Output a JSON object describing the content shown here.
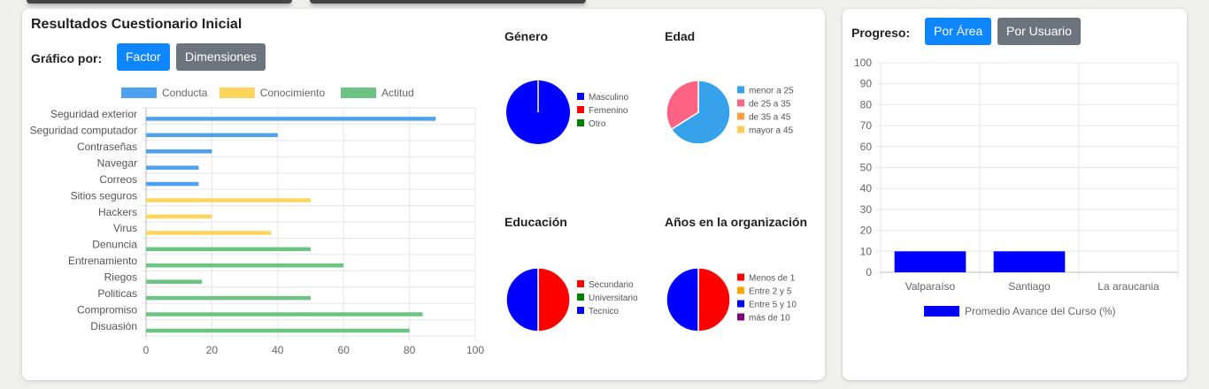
{
  "left_panel": {
    "title": "Resultados Cuestionario Inicial",
    "group_label": "Gráfico por:",
    "btn_factor": "Factor",
    "btn_dimensiones": "Dimensiones"
  },
  "right_panel": {
    "label": "Progreso:",
    "btn_area": "Por Área",
    "btn_usuario": "Por Usuario"
  },
  "colors": {
    "conducta": "#4ea1f1",
    "conocimiento": "#fcd55a",
    "actitud": "#6cc482",
    "blue": "#0000ff",
    "red": "#ff0000",
    "green": "#008000",
    "pink": "#ff6384",
    "lightblue": "#36a2eb",
    "orange": "#ff9f40",
    "yellow": "#ffcd56",
    "amber": "#ffa500",
    "purple": "#800080"
  },
  "chart_data": [
    {
      "id": "factor",
      "type": "bar",
      "orientation": "horizontal",
      "categories": [
        "Seguridad exterior",
        "Seguridad computador",
        "Contraseñas",
        "Navegar",
        "Correos",
        "Sitios seguros",
        "Hackers",
        "Virus",
        "Denuncia",
        "Entrenamiento",
        "Riegos",
        "Politicas",
        "Compromiso",
        "Disuasión"
      ],
      "series": [
        {
          "name": "Conducta",
          "values": [
            88,
            40,
            20,
            16,
            16,
            null,
            null,
            null,
            null,
            null,
            null,
            null,
            null,
            null
          ]
        },
        {
          "name": "Conocimiento",
          "values": [
            null,
            null,
            null,
            null,
            null,
            50,
            20,
            38,
            null,
            null,
            null,
            null,
            null,
            null
          ]
        },
        {
          "name": "Actitud",
          "values": [
            null,
            null,
            null,
            null,
            null,
            null,
            null,
            null,
            50,
            60,
            17,
            50,
            84,
            80
          ]
        }
      ],
      "xlim": [
        0,
        100
      ],
      "xticks": [
        0,
        20,
        40,
        60,
        80,
        100
      ],
      "legend": "top",
      "grid": true
    },
    {
      "id": "genero",
      "type": "pie",
      "title": "Género",
      "labels": [
        "Masculino",
        "Femenino",
        "Otro"
      ],
      "values": [
        100,
        0,
        0
      ]
    },
    {
      "id": "edad",
      "type": "pie",
      "title": "Edad",
      "labels": [
        "menor a 25",
        "de 25 a 35",
        "de 35 a 45",
        "mayor a 45"
      ],
      "values": [
        66,
        34,
        0,
        0
      ]
    },
    {
      "id": "educacion",
      "type": "pie",
      "title": "Educación",
      "labels": [
        "Secundario",
        "Universitario",
        "Tecnico"
      ],
      "values": [
        50,
        0,
        50
      ]
    },
    {
      "id": "anos",
      "type": "pie",
      "title": "Años en la organización",
      "labels": [
        "Menos de 1",
        "Entre 2 y 5",
        "Entre 5 y 10",
        "más de 10"
      ],
      "values": [
        50,
        0,
        50,
        0
      ]
    },
    {
      "id": "progreso",
      "type": "bar",
      "orientation": "vertical",
      "categories": [
        "Valparaíso",
        "Santiago",
        "La araucania"
      ],
      "series": [
        {
          "name": "Promedio Avance del Curso (%)",
          "values": [
            10,
            10,
            0
          ]
        }
      ],
      "ylim": [
        0,
        100
      ],
      "yticks": [
        0,
        10,
        20,
        30,
        40,
        50,
        60,
        70,
        80,
        90,
        100
      ],
      "legend": "bottom",
      "grid": true
    }
  ]
}
